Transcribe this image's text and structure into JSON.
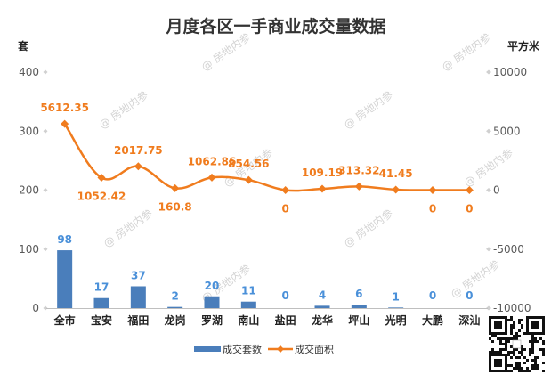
{
  "chart_data": {
    "type": "bar+line",
    "title": "月度各区一手商业成交量数据",
    "y_left_unit": "套",
    "y_right_unit": "平方米",
    "categories": [
      "全市",
      "宝安",
      "福田",
      "龙岗",
      "罗湖",
      "南山",
      "盐田",
      "龙华",
      "坪山",
      "光明",
      "大鹏",
      "深汕"
    ],
    "series": [
      {
        "name": "成交套数",
        "type": "bar",
        "axis": "left",
        "color": "#4a7ebb",
        "label_color": "#4a90d9",
        "values": [
          98,
          17,
          37,
          2,
          20,
          11,
          0,
          4,
          6,
          1,
          0,
          0
        ],
        "labels": [
          "98",
          "17",
          "37",
          "2",
          "20",
          "11",
          "0",
          "4",
          "6",
          "1",
          "0",
          "0"
        ]
      },
      {
        "name": "成交面积",
        "type": "line",
        "axis": "right",
        "color": "#f07c1e",
        "values": [
          5612.35,
          1052.42,
          2017.75,
          160.8,
          1062.86,
          854.56,
          0,
          109.19,
          313.32,
          41.45,
          0,
          0
        ],
        "labels": [
          "5612.35",
          "1052.42",
          "2017.75",
          "160.8",
          "1062.86",
          "854.56",
          "0",
          "109.19",
          "313.32",
          "41.45",
          "0",
          "0"
        ]
      }
    ],
    "y_left": {
      "min": 0,
      "max": 400,
      "ticks": [
        "0",
        "100",
        "200",
        "300",
        "400"
      ]
    },
    "y_right": {
      "min": -10000,
      "max": 10000,
      "ticks": [
        "-10000",
        "-5000",
        "0",
        "5000",
        "10000"
      ]
    },
    "grid": false,
    "legend_position": "bottom",
    "watermark_text": "@ 房地内参"
  }
}
